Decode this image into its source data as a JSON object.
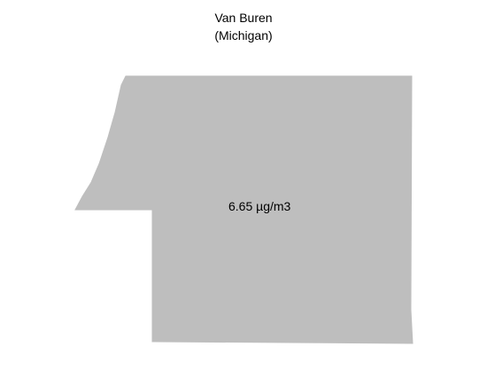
{
  "map": {
    "title_line1": "Van Buren",
    "title_line2": "(Michigan)",
    "region_name": "Van Buren",
    "region_value_label": "6.65 µg/m3",
    "region_value": 6.65,
    "region_unit": "µg/m3",
    "region_fill": "#bebebe"
  }
}
